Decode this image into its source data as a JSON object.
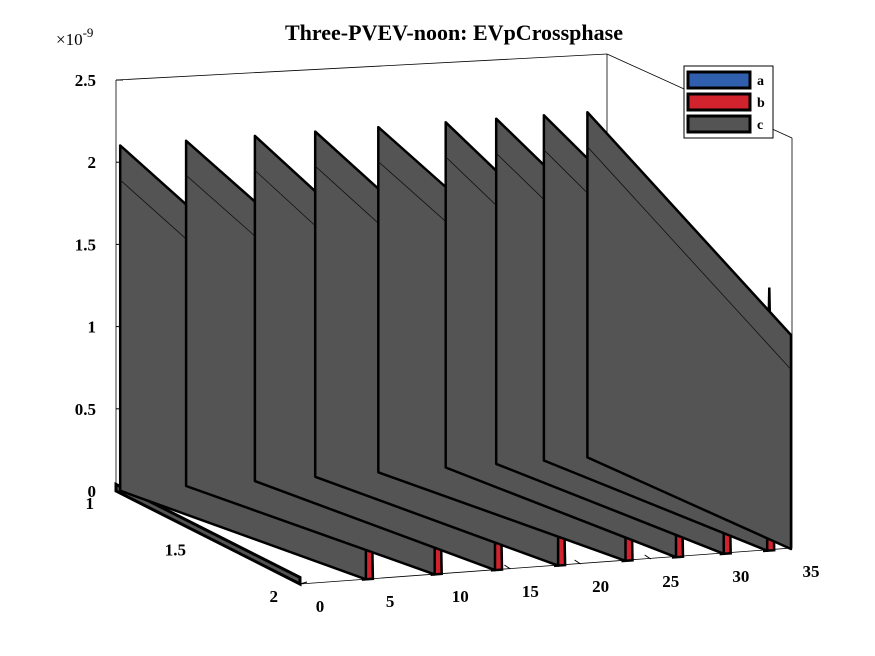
{
  "chart_data": {
    "type": "area",
    "view": "3d-waterfall",
    "title": "Three-PVEV-noon: EVpCrossphase",
    "exponent_label": "×10",
    "exponent_power": "-9",
    "xlim": [
      0,
      35
    ],
    "ylim": [
      1,
      2
    ],
    "zlim": [
      0,
      2.5
    ],
    "x_ticks": [
      "0",
      "5",
      "10",
      "15",
      "20",
      "25",
      "30",
      "35"
    ],
    "y_ticks": [
      "1",
      "1.5",
      "2"
    ],
    "z_ticks": [
      "0",
      "0.5",
      "1",
      "1.5",
      "2",
      "2.5"
    ],
    "legend": {
      "placement": "top-right",
      "entries": [
        "a",
        "b",
        "c"
      ]
    },
    "colors": {
      "a": "#2f5fad",
      "b": "#d0232e",
      "c": "#545454"
    },
    "series": [
      {
        "name": "c",
        "segments": [
          {
            "x0": 0.3,
            "x1": 4.7,
            "peak": 2.1
          },
          {
            "x0": 5.0,
            "x1": 9.6,
            "peak": 2.1
          },
          {
            "x0": 9.9,
            "x1": 13.9,
            "peak": 2.1
          },
          {
            "x0": 14.2,
            "x1": 18.4,
            "peak": 2.1
          },
          {
            "x0": 18.7,
            "x1": 23.2,
            "peak": 2.1
          },
          {
            "x0": 23.5,
            "x1": 26.8,
            "peak": 2.1
          },
          {
            "x0": 27.1,
            "x1": 30.2,
            "peak": 2.1
          },
          {
            "x0": 30.5,
            "x1": 33.3,
            "peak": 2.1
          },
          {
            "x0": 33.6,
            "x1": 35.0,
            "peak": 2.1
          }
        ]
      },
      {
        "name": "b",
        "segments": [
          {
            "x0": 4.5,
            "x1": 5.2,
            "peak": 1.6
          },
          {
            "x0": 9.4,
            "x1": 10.1,
            "peak": 1.6
          },
          {
            "x0": 13.7,
            "x1": 14.4,
            "peak": 1.6
          },
          {
            "x0": 18.2,
            "x1": 18.9,
            "peak": 1.6
          },
          {
            "x0": 23.0,
            "x1": 23.7,
            "peak": 1.6
          },
          {
            "x0": 26.6,
            "x1": 27.3,
            "peak": 1.6
          },
          {
            "x0": 30.0,
            "x1": 30.7,
            "peak": 1.6
          },
          {
            "x0": 33.1,
            "x1": 33.8,
            "peak": 1.6
          }
        ]
      },
      {
        "name": "a",
        "segments": []
      }
    ]
  }
}
